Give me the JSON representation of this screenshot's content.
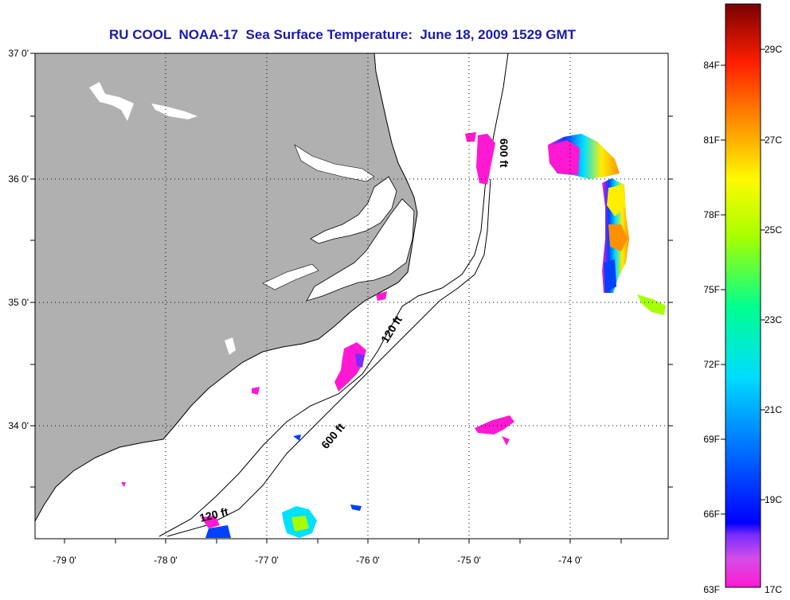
{
  "title": "RU COOL  NOAA-17  Sea Surface Temperature:  June 18, 2009 1529 GMT",
  "latitude_labels": [
    "37 0'",
    "36 0'",
    "35 0'",
    "34 0'"
  ],
  "longitude_labels": [
    "-79 0'",
    "-78 0'",
    "-77 0'",
    "-76 0'",
    "-75 0'",
    "-74 0'"
  ],
  "contour_labels": {
    "c120_south": "120 ft",
    "c120_mid": "120 ft",
    "c600_mid": "600 ft",
    "c600_north": "600 ft"
  },
  "colorbar": {
    "fahrenheit": [
      "84F",
      "81F",
      "78F",
      "75F",
      "72F",
      "69F",
      "66F",
      "63F"
    ],
    "celsius": [
      "29C",
      "27C",
      "25C",
      "23C",
      "21C",
      "19C",
      "17C"
    ]
  },
  "colors": {
    "land": "#b0b0b0",
    "title": "#1a1ab0",
    "cold": "#ff2bd6",
    "warm": "#8b0000"
  }
}
